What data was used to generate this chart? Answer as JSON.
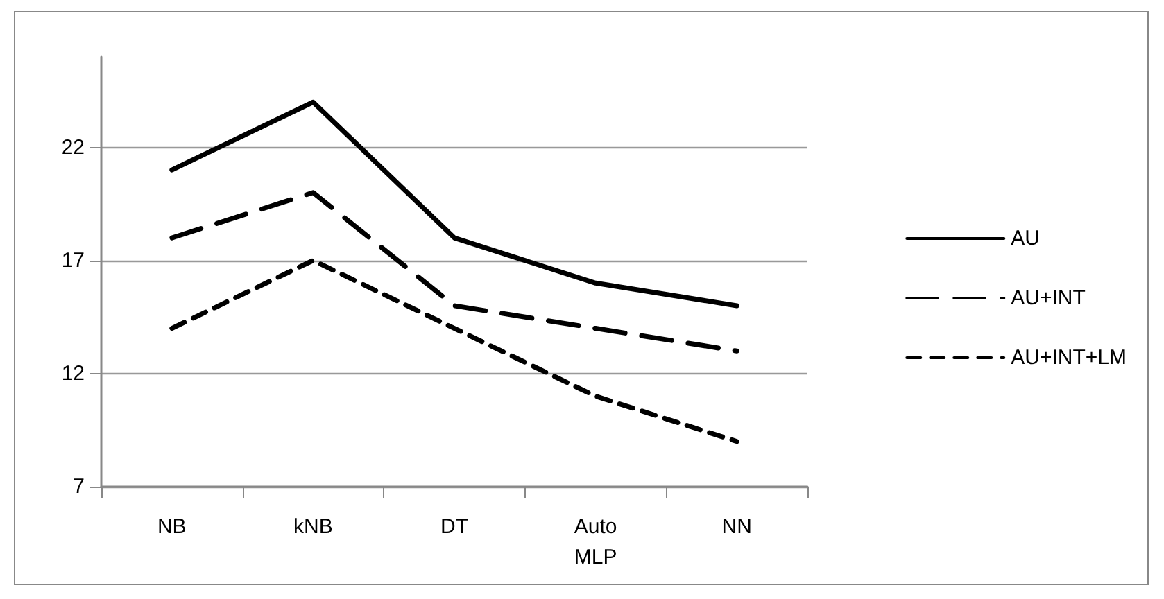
{
  "chart_data": {
    "type": "line",
    "categories": [
      "NB",
      "kNB",
      "DT",
      "Auto MLP",
      "NN"
    ],
    "series": [
      {
        "name": "AU",
        "color": "#000000",
        "line_style": "solid",
        "values": [
          21,
          24,
          18,
          16,
          15
        ]
      },
      {
        "name": "AU+INT",
        "color": "#000000",
        "line_style": "dashed",
        "values": [
          18,
          20,
          15,
          14,
          13
        ]
      },
      {
        "name": "AU+INT+LM",
        "color": "#000000",
        "line_style": "dotted",
        "values": [
          14,
          17,
          14,
          11,
          9
        ]
      }
    ],
    "ylim": [
      7,
      26
    ],
    "yticks": [
      7,
      12,
      17,
      22
    ],
    "grid": "y",
    "legend": "right",
    "marker": "none"
  }
}
